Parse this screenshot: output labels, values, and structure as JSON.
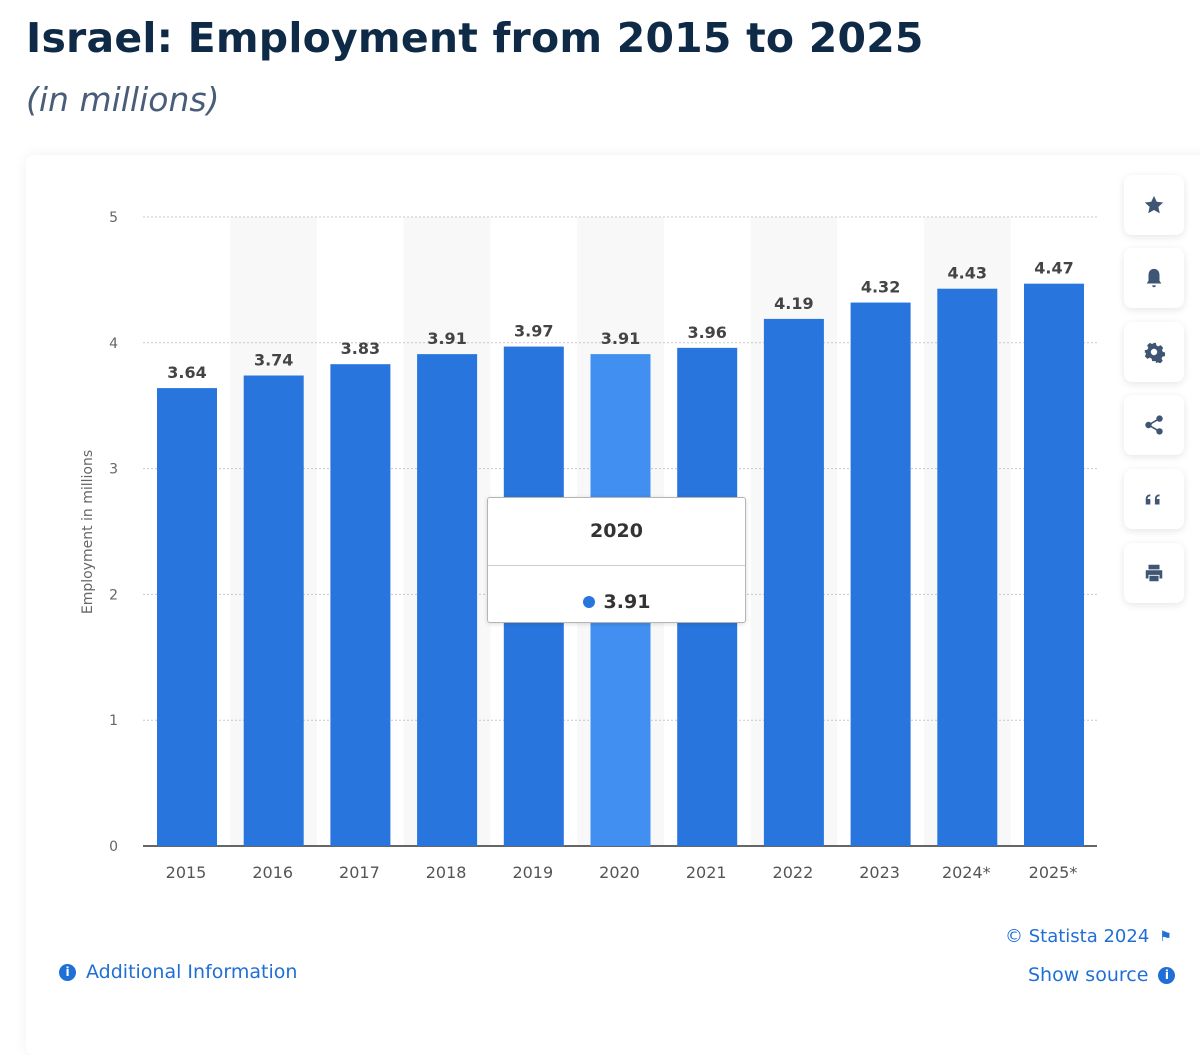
{
  "header": {
    "title": "Israel: Employment from 2015 to 2025",
    "subtitle": "(in millions)"
  },
  "chart_data": {
    "type": "bar",
    "categories": [
      "2015",
      "2016",
      "2017",
      "2018",
      "2019",
      "2020",
      "2021",
      "2022",
      "2023",
      "2024*",
      "2025*"
    ],
    "values": [
      3.64,
      3.74,
      3.83,
      3.91,
      3.97,
      3.91,
      3.96,
      4.19,
      4.32,
      4.43,
      4.47
    ],
    "ylabel": "Employment in millions",
    "xlabel": "",
    "ylim": [
      0,
      5
    ],
    "yticks": [
      0,
      1,
      2,
      3,
      4,
      5
    ],
    "grid": true,
    "highlighted": "2020",
    "colors": {
      "bar": "#2876dd",
      "highlight": "#418ff0",
      "stripe": "#f8f8f8"
    }
  },
  "tooltip": {
    "year": "2020",
    "value": "3.91"
  },
  "sidebar": {
    "buttons": [
      {
        "name": "favorite",
        "icon": "star-icon"
      },
      {
        "name": "notification",
        "icon": "bell-icon"
      },
      {
        "name": "settings",
        "icon": "gear-icon"
      },
      {
        "name": "share",
        "icon": "share-icon"
      },
      {
        "name": "cite",
        "icon": "quote-icon"
      },
      {
        "name": "print",
        "icon": "printer-icon"
      }
    ]
  },
  "footer": {
    "additional_info": "Additional Information",
    "copyright": "© Statista 2024",
    "show_source": "Show source"
  }
}
